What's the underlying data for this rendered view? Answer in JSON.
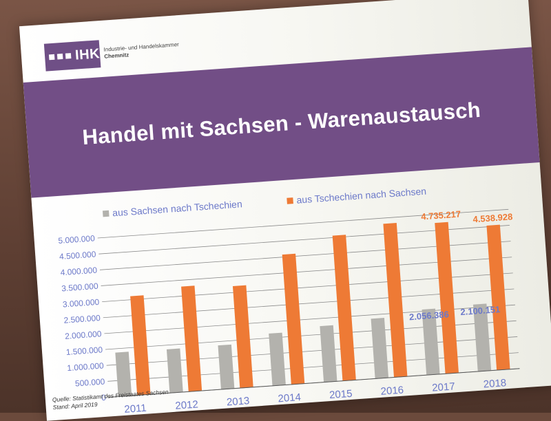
{
  "logo": {
    "mark": "IHK",
    "line1": "Industrie- und Handelskammer",
    "line2": "Chemnitz"
  },
  "title": "Handel mit Sachsen - Warenaustausch",
  "source": {
    "line1": "Quelle: Statistikamt des Freistaates Sachsen",
    "line2": "Stand: April 2019"
  },
  "colors": {
    "banner": "#724e86",
    "grey_series": "#b3b2ad",
    "orange_series": "#ee7a35",
    "label_blue": "#6c79c9",
    "label_orange": "#ee7a35"
  },
  "chart_data": {
    "type": "bar",
    "categories": [
      "2011",
      "2012",
      "2013",
      "2014",
      "2015",
      "2016",
      "2017",
      "2018"
    ],
    "series": [
      {
        "name": "aus Sachsen nach Tschechien",
        "values": [
          1380000,
          1370000,
          1380000,
          1640000,
          1760000,
          1880000,
          2056386,
          2100151
        ]
      },
      {
        "name": "aus Tschechien nach  Sachsen",
        "values": [
          3110000,
          3300000,
          3200000,
          4080000,
          4560000,
          4820000,
          4735217,
          4538928
        ]
      }
    ],
    "data_labels": [
      {
        "series": 0,
        "category": "2017",
        "text": "2.056.386"
      },
      {
        "series": 0,
        "category": "2018",
        "text": "2.100.151"
      },
      {
        "series": 1,
        "category": "2017",
        "text": "4.735.217"
      },
      {
        "series": 1,
        "category": "2018",
        "text": "4.538.928"
      }
    ],
    "y_ticks": [
      {
        "value": 0,
        "label": "0"
      },
      {
        "value": 500000,
        "label": "500.000"
      },
      {
        "value": 1000000,
        "label": "1.000.000"
      },
      {
        "value": 1500000,
        "label": "1.500.000"
      },
      {
        "value": 2000000,
        "label": "2.000.000"
      },
      {
        "value": 2500000,
        "label": "2.500.000"
      },
      {
        "value": 3000000,
        "label": "3.000.000"
      },
      {
        "value": 3500000,
        "label": "3.500.000"
      },
      {
        "value": 4000000,
        "label": "4.000.000"
      },
      {
        "value": 4500000,
        "label": "4.500.000"
      },
      {
        "value": 5000000,
        "label": "5.000.000"
      }
    ],
    "ylim": [
      0,
      5000000
    ],
    "grid": true,
    "legend": "top"
  }
}
